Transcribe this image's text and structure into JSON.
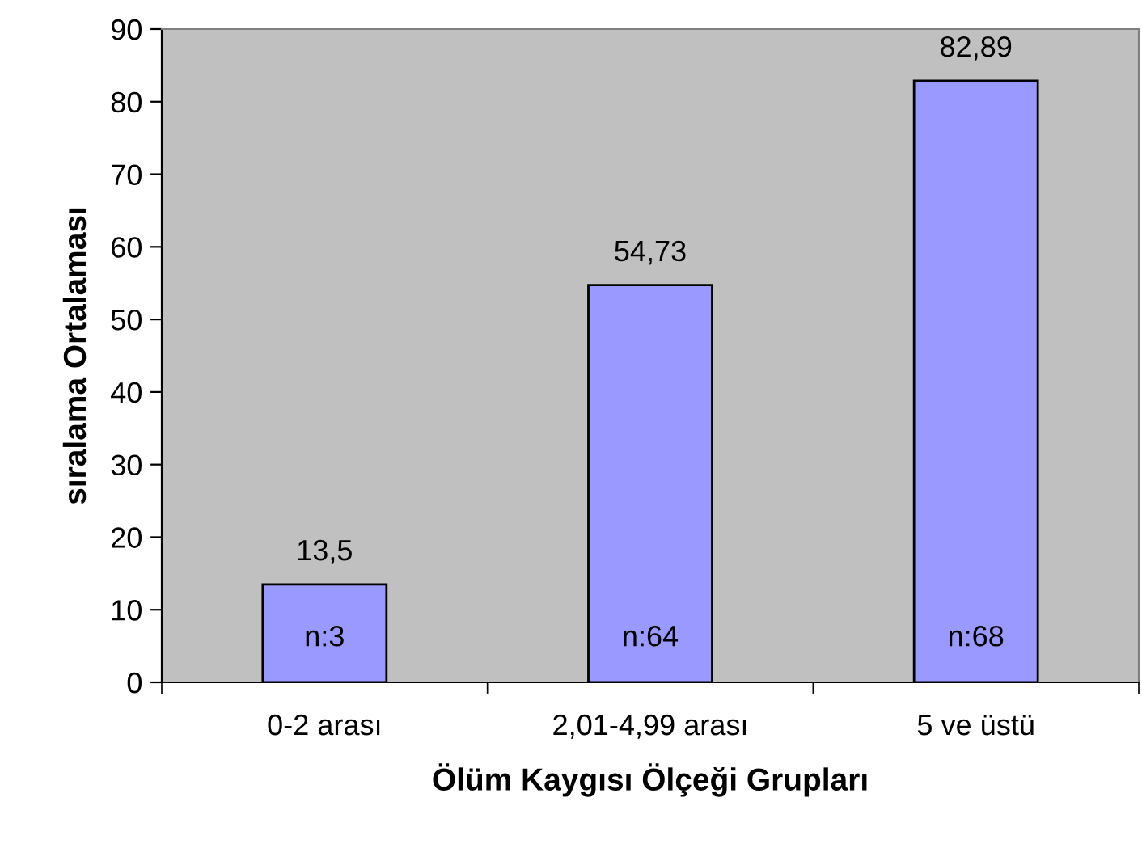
{
  "chart_data": {
    "type": "bar",
    "xlabel": "Ölüm Kaygısı Ölçeği Grupları",
    "ylabel": "sıralama Ortalaması",
    "categories": [
      "0-2 arası",
      "2,01-4,99 arası",
      "5 ve üstü"
    ],
    "values": [
      13.5,
      54.73,
      82.89
    ],
    "value_labels": [
      "13,5",
      "54,73",
      "82,89"
    ],
    "color": "#9999ff",
    "ylim": [
      0,
      90
    ],
    "yticks": [
      0,
      10,
      20,
      30,
      40,
      50,
      60,
      70,
      80,
      90
    ],
    "grid": false,
    "legend": false,
    "annotations": [
      "n:3",
      "n:64",
      "n:68"
    ]
  }
}
